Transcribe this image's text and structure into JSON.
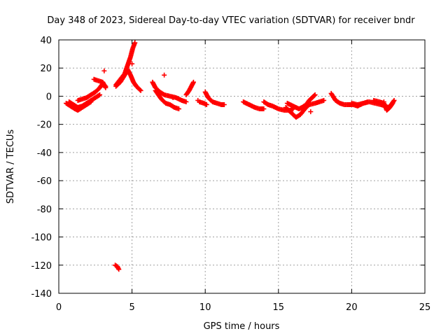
{
  "chart_data": {
    "type": "scatter",
    "title": "Day 348 of 2023, Sidereal Day-to-day VTEC variation (SDTVAR) for receiver bndr",
    "xlabel": "GPS time / hours",
    "ylabel": "SDTVAR / TECUs",
    "xlim": [
      0,
      25
    ],
    "ylim": [
      -140,
      40
    ],
    "grid": true,
    "x_ticks": [
      0,
      5,
      10,
      15,
      20,
      25
    ],
    "x_tick_labels": [
      "0",
      "5",
      "10",
      "15",
      "20",
      "25"
    ],
    "y_ticks": [
      40,
      20,
      0,
      -20,
      -40,
      -60,
      -80,
      -100,
      -120,
      -140
    ],
    "y_tick_labels": [
      "40",
      "20",
      "0",
      "-20",
      "-40",
      "-60",
      "-80",
      "-100",
      "-120",
      "-140"
    ],
    "marker": "+",
    "series": [
      {
        "name": "SDTVAR",
        "color": "#ff0000",
        "tracks": [
          [
            [
              0.5,
              -5
            ],
            [
              0.8,
              -7
            ],
            [
              1.1,
              -9
            ],
            [
              1.3,
              -10
            ],
            [
              1.6,
              -8
            ],
            [
              1.9,
              -6
            ],
            [
              2.2,
              -4
            ]
          ],
          [
            [
              0.7,
              -4
            ],
            [
              1.0,
              -6
            ],
            [
              1.3,
              -8
            ],
            [
              1.6,
              -7
            ],
            [
              1.9,
              -5
            ],
            [
              2.2,
              -3
            ],
            [
              2.5,
              -1
            ],
            [
              2.8,
              1
            ]
          ],
          [
            [
              1.3,
              -3
            ],
            [
              1.6,
              -2
            ],
            [
              1.9,
              -1
            ],
            [
              2.2,
              1
            ],
            [
              2.5,
              3
            ],
            [
              2.8,
              6
            ],
            [
              3.0,
              9
            ],
            [
              3.2,
              7
            ]
          ],
          [
            [
              2.4,
              12
            ],
            [
              2.7,
              11
            ],
            [
              3.0,
              10
            ],
            [
              3.2,
              6
            ]
          ],
          [
            [
              3.9,
              8
            ],
            [
              4.2,
              12
            ],
            [
              4.5,
              16
            ],
            [
              4.7,
              22
            ],
            [
              4.9,
              28
            ],
            [
              5.05,
              34
            ],
            [
              5.2,
              38
            ]
          ],
          [
            [
              3.9,
              7
            ],
            [
              4.2,
              10
            ],
            [
              4.5,
              15
            ],
            [
              4.7,
              19
            ],
            [
              4.9,
              15
            ],
            [
              5.1,
              10
            ],
            [
              5.3,
              7
            ],
            [
              5.6,
              4
            ]
          ],
          [
            [
              6.4,
              10
            ],
            [
              6.6,
              6
            ],
            [
              6.9,
              3
            ],
            [
              7.2,
              1
            ],
            [
              7.6,
              0
            ],
            [
              8.0,
              -1
            ],
            [
              8.4,
              -3
            ],
            [
              8.7,
              -4
            ]
          ],
          [
            [
              6.6,
              4
            ],
            [
              7.0,
              -2
            ],
            [
              7.3,
              -5
            ],
            [
              7.6,
              -6
            ],
            [
              7.9,
              -8
            ],
            [
              8.2,
              -9
            ]
          ],
          [
            [
              8.7,
              1
            ],
            [
              8.9,
              4
            ],
            [
              9.1,
              8
            ],
            [
              9.2,
              10
            ]
          ],
          [
            [
              9.6,
              -4
            ],
            [
              9.9,
              -5
            ],
            [
              10.1,
              -6
            ]
          ],
          [
            [
              10.0,
              3
            ],
            [
              10.2,
              -1
            ],
            [
              10.5,
              -4
            ],
            [
              10.8,
              -5
            ],
            [
              11.1,
              -6
            ],
            [
              11.3,
              -6
            ]
          ],
          [
            [
              12.6,
              -4
            ],
            [
              13.0,
              -6
            ],
            [
              13.4,
              -8
            ],
            [
              13.7,
              -9
            ],
            [
              14.0,
              -9
            ]
          ],
          [
            [
              14.0,
              -4
            ],
            [
              14.3,
              -6
            ],
            [
              14.6,
              -7
            ],
            [
              15.0,
              -9
            ],
            [
              15.4,
              -10
            ],
            [
              15.8,
              -10
            ],
            [
              16.0,
              -9
            ]
          ],
          [
            [
              15.5,
              -8
            ],
            [
              15.9,
              -12
            ],
            [
              16.2,
              -15
            ],
            [
              16.5,
              -13
            ],
            [
              16.8,
              -9
            ],
            [
              17.1,
              -6
            ],
            [
              17.5,
              -5
            ],
            [
              17.8,
              -4
            ],
            [
              18.1,
              -3
            ]
          ],
          [
            [
              15.6,
              -5
            ],
            [
              16.0,
              -7
            ],
            [
              16.4,
              -9
            ],
            [
              16.6,
              -8
            ],
            [
              16.9,
              -6
            ],
            [
              17.1,
              -3
            ],
            [
              17.3,
              -1
            ],
            [
              17.5,
              1
            ]
          ],
          [
            [
              18.6,
              2
            ],
            [
              18.9,
              -3
            ],
            [
              19.2,
              -5
            ],
            [
              19.5,
              -6
            ],
            [
              19.8,
              -6
            ],
            [
              20.1,
              -6
            ],
            [
              20.4,
              -7
            ],
            [
              20.6,
              -6
            ],
            [
              20.8,
              -5
            ],
            [
              21.1,
              -4
            ]
          ],
          [
            [
              20.0,
              -5
            ],
            [
              20.4,
              -6
            ],
            [
              20.8,
              -5
            ],
            [
              21.2,
              -4
            ],
            [
              21.6,
              -5
            ],
            [
              22.0,
              -6
            ],
            [
              22.3,
              -7
            ],
            [
              22.5,
              -8
            ],
            [
              22.7,
              -6
            ],
            [
              22.9,
              -3
            ]
          ],
          [
            [
              21.5,
              -3
            ],
            [
              21.9,
              -4
            ],
            [
              22.2,
              -5
            ],
            [
              22.4,
              -10
            ],
            [
              22.6,
              -8
            ],
            [
              22.8,
              -5
            ]
          ],
          [
            [
              3.85,
              -120
            ],
            [
              4.0,
              -121
            ],
            [
              4.1,
              -123
            ]
          ]
        ],
        "points": [
          [
            3.1,
            18
          ],
          [
            5.0,
            23
          ],
          [
            7.2,
            15
          ],
          [
            7.8,
            -1
          ],
          [
            9.5,
            -3
          ],
          [
            17.2,
            -11
          ],
          [
            22.2,
            -4
          ]
        ]
      }
    ]
  }
}
